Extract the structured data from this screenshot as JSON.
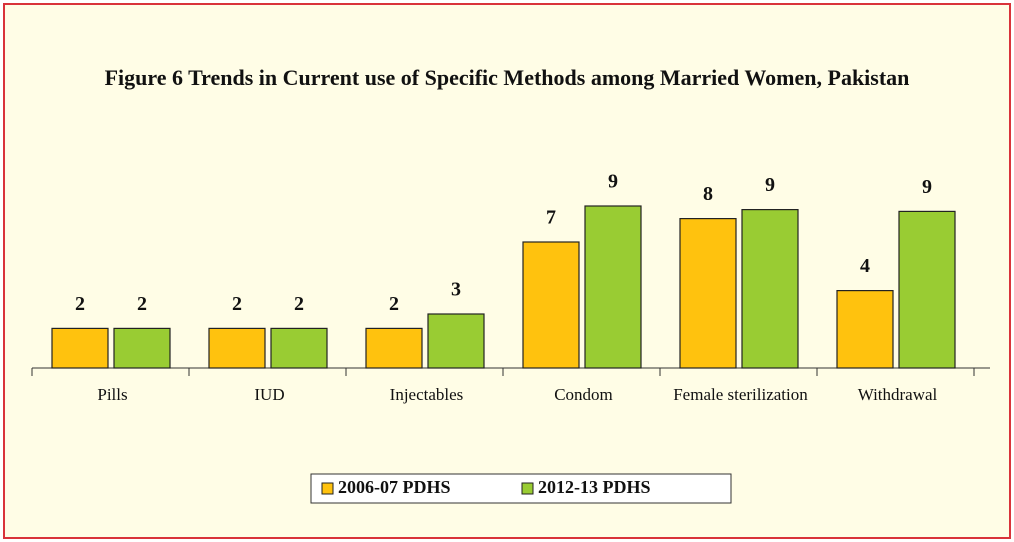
{
  "chart_data": {
    "type": "bar",
    "title": "Figure 6 Trends in Current use of Specific Methods among Married Women, Pakistan",
    "categories": [
      "Pills",
      "IUD",
      "Injectables",
      "Condom",
      "Female sterilization",
      "Withdrawal"
    ],
    "series": [
      {
        "name": "2006-07 PDHS",
        "color": "#FFC20E",
        "values": [
          2.2,
          2.2,
          2.2,
          7.0,
          8.3,
          4.3
        ],
        "value_labels": [
          "2",
          "2",
          "2",
          "7",
          "8",
          "4"
        ]
      },
      {
        "name": "2012-13 PDHS",
        "color": "#99CC33",
        "values": [
          2.2,
          2.2,
          3.0,
          9.0,
          8.8,
          8.7
        ],
        "value_labels": [
          "2",
          "2",
          "3",
          "9",
          "9",
          "9"
        ]
      }
    ]
  }
}
